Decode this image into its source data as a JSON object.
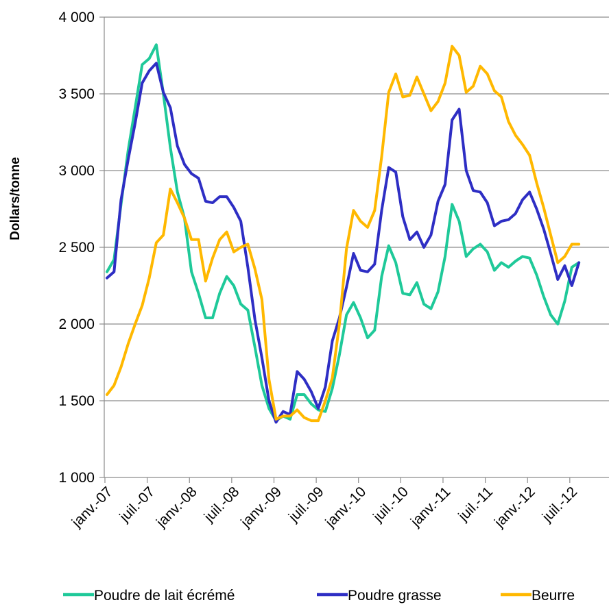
{
  "chart_data": {
    "type": "line",
    "title": "",
    "xlabel": "",
    "ylabel": "Dollars/tonne",
    "ylim": [
      1000,
      4000
    ],
    "yticks": [
      1000,
      1500,
      2000,
      2500,
      3000,
      3500,
      4000
    ],
    "ytick_labels": [
      "1 000",
      "1 500",
      "2 000",
      "2 500",
      "3 000",
      "3 500",
      "4 000"
    ],
    "x_tick_labels": [
      "janv.-07",
      "juil.-07",
      "janv.-08",
      "juil.-08",
      "janv.-09",
      "juil.-09",
      "janv.-10",
      "juil.-10",
      "janv.-11",
      "juil.-11",
      "janv.-12",
      "juil.-12"
    ],
    "x_start": "janv.-07",
    "frequency": "monthly",
    "grid": true,
    "legend_position": "bottom",
    "series": [
      {
        "name": "Poudre de lait écrémé",
        "color": "#1fc999",
        "values": [
          2340,
          2420,
          2780,
          3130,
          3410,
          3690,
          3730,
          3820,
          3500,
          3150,
          2860,
          2690,
          2340,
          2200,
          2040,
          2040,
          2200,
          2310,
          2250,
          2130,
          2090,
          1850,
          1600,
          1450,
          1370,
          1400,
          1380,
          1540,
          1540,
          1480,
          1440,
          1430,
          1580,
          1800,
          2060,
          2140,
          2040,
          1910,
          1960,
          2310,
          2510,
          2400,
          2200,
          2190,
          2270,
          2130,
          2100,
          2210,
          2440,
          2780,
          2670,
          2440,
          2490,
          2520,
          2470,
          2350,
          2400,
          2370,
          2410,
          2440,
          2430,
          2320,
          2180,
          2060,
          2000,
          2150,
          2370,
          2400
        ]
      },
      {
        "name": "Poudre grasse",
        "color": "#2e2ec4",
        "values": [
          2300,
          2340,
          2810,
          3070,
          3310,
          3570,
          3650,
          3700,
          3510,
          3410,
          3160,
          3040,
          2980,
          2950,
          2800,
          2790,
          2830,
          2830,
          2760,
          2670,
          2370,
          2030,
          1780,
          1500,
          1360,
          1430,
          1410,
          1690,
          1640,
          1560,
          1450,
          1590,
          1890,
          2040,
          2240,
          2460,
          2350,
          2340,
          2390,
          2740,
          3020,
          2990,
          2700,
          2550,
          2600,
          2500,
          2580,
          2800,
          2910,
          3330,
          3400,
          3000,
          2870,
          2860,
          2790,
          2640,
          2670,
          2680,
          2720,
          2810,
          2860,
          2750,
          2620,
          2460,
          2290,
          2380,
          2250,
          2400
        ]
      },
      {
        "name": "Beurre",
        "color": "#ffb800",
        "values": [
          1540,
          1600,
          1720,
          1870,
          2000,
          2120,
          2300,
          2530,
          2580,
          2880,
          2790,
          2690,
          2550,
          2550,
          2280,
          2430,
          2550,
          2600,
          2470,
          2500,
          2520,
          2360,
          2160,
          1640,
          1380,
          1400,
          1400,
          1440,
          1390,
          1370,
          1370,
          1500,
          1650,
          2000,
          2490,
          2740,
          2670,
          2630,
          2740,
          3090,
          3510,
          3630,
          3480,
          3490,
          3610,
          3500,
          3390,
          3450,
          3570,
          3810,
          3750,
          3510,
          3550,
          3680,
          3630,
          3520,
          3480,
          3320,
          3230,
          3170,
          3100,
          2920,
          2760,
          2580,
          2400,
          2440,
          2520,
          2520
        ]
      }
    ]
  }
}
